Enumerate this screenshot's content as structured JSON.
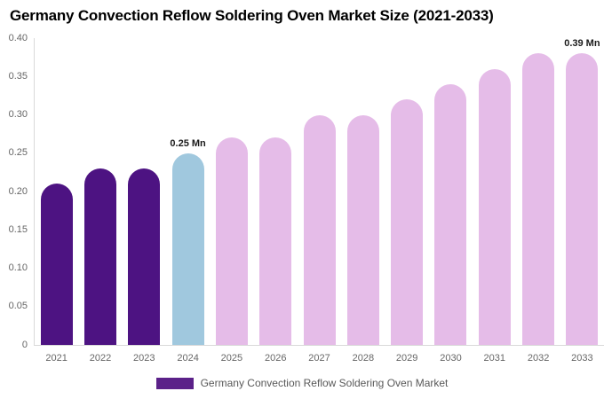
{
  "chart": {
    "title": "Germany Convection Reflow Soldering Oven Market Size (2021-2033)"
  },
  "legend": {
    "label": "Germany Convection Reflow Soldering Oven Market",
    "swatch_color": "#5b2189"
  },
  "colors": {
    "title_text": "#000000",
    "axis_label_text": "#666666",
    "axis_line": "#d9d9d9",
    "data_label_text": "#1a1a1a",
    "legend_text": "#595959"
  },
  "chart_data": {
    "type": "bar",
    "title": "Germany Convection Reflow Soldering Oven Market Size (2021-2033)",
    "xlabel": "",
    "ylabel": "",
    "unit": "Mn",
    "categories": [
      "2021",
      "2022",
      "2023",
      "2024",
      "2025",
      "2026",
      "2027",
      "2028",
      "2029",
      "2030",
      "2031",
      "2032",
      "2033"
    ],
    "series": [
      {
        "name": "Germany Convection Reflow Soldering Oven Market",
        "values": [
          0.21,
          0.23,
          0.23,
          0.25,
          0.27,
          0.27,
          0.3,
          0.3,
          0.32,
          0.34,
          0.36,
          0.38,
          0.39
        ]
      }
    ],
    "bar_roles": [
      "historical",
      "historical",
      "historical",
      "current",
      "forecast",
      "forecast",
      "forecast",
      "forecast",
      "forecast",
      "forecast",
      "forecast",
      "forecast",
      "forecast"
    ],
    "role_colors": {
      "historical": "#4d1382",
      "current": "#a0c8de",
      "forecast": "#e5bce8"
    },
    "ylim": [
      0,
      0.4
    ],
    "y_ticks": [
      "0.40",
      "0.35",
      "0.30",
      "0.25",
      "0.20",
      "0.15",
      "0.10",
      "0.05",
      "0"
    ],
    "grid": false,
    "legend_position": "bottom",
    "annotations": [
      {
        "category": "2024",
        "text": "0.25 Mn"
      },
      {
        "category": "2033",
        "text": "0.39 Mn"
      }
    ]
  }
}
